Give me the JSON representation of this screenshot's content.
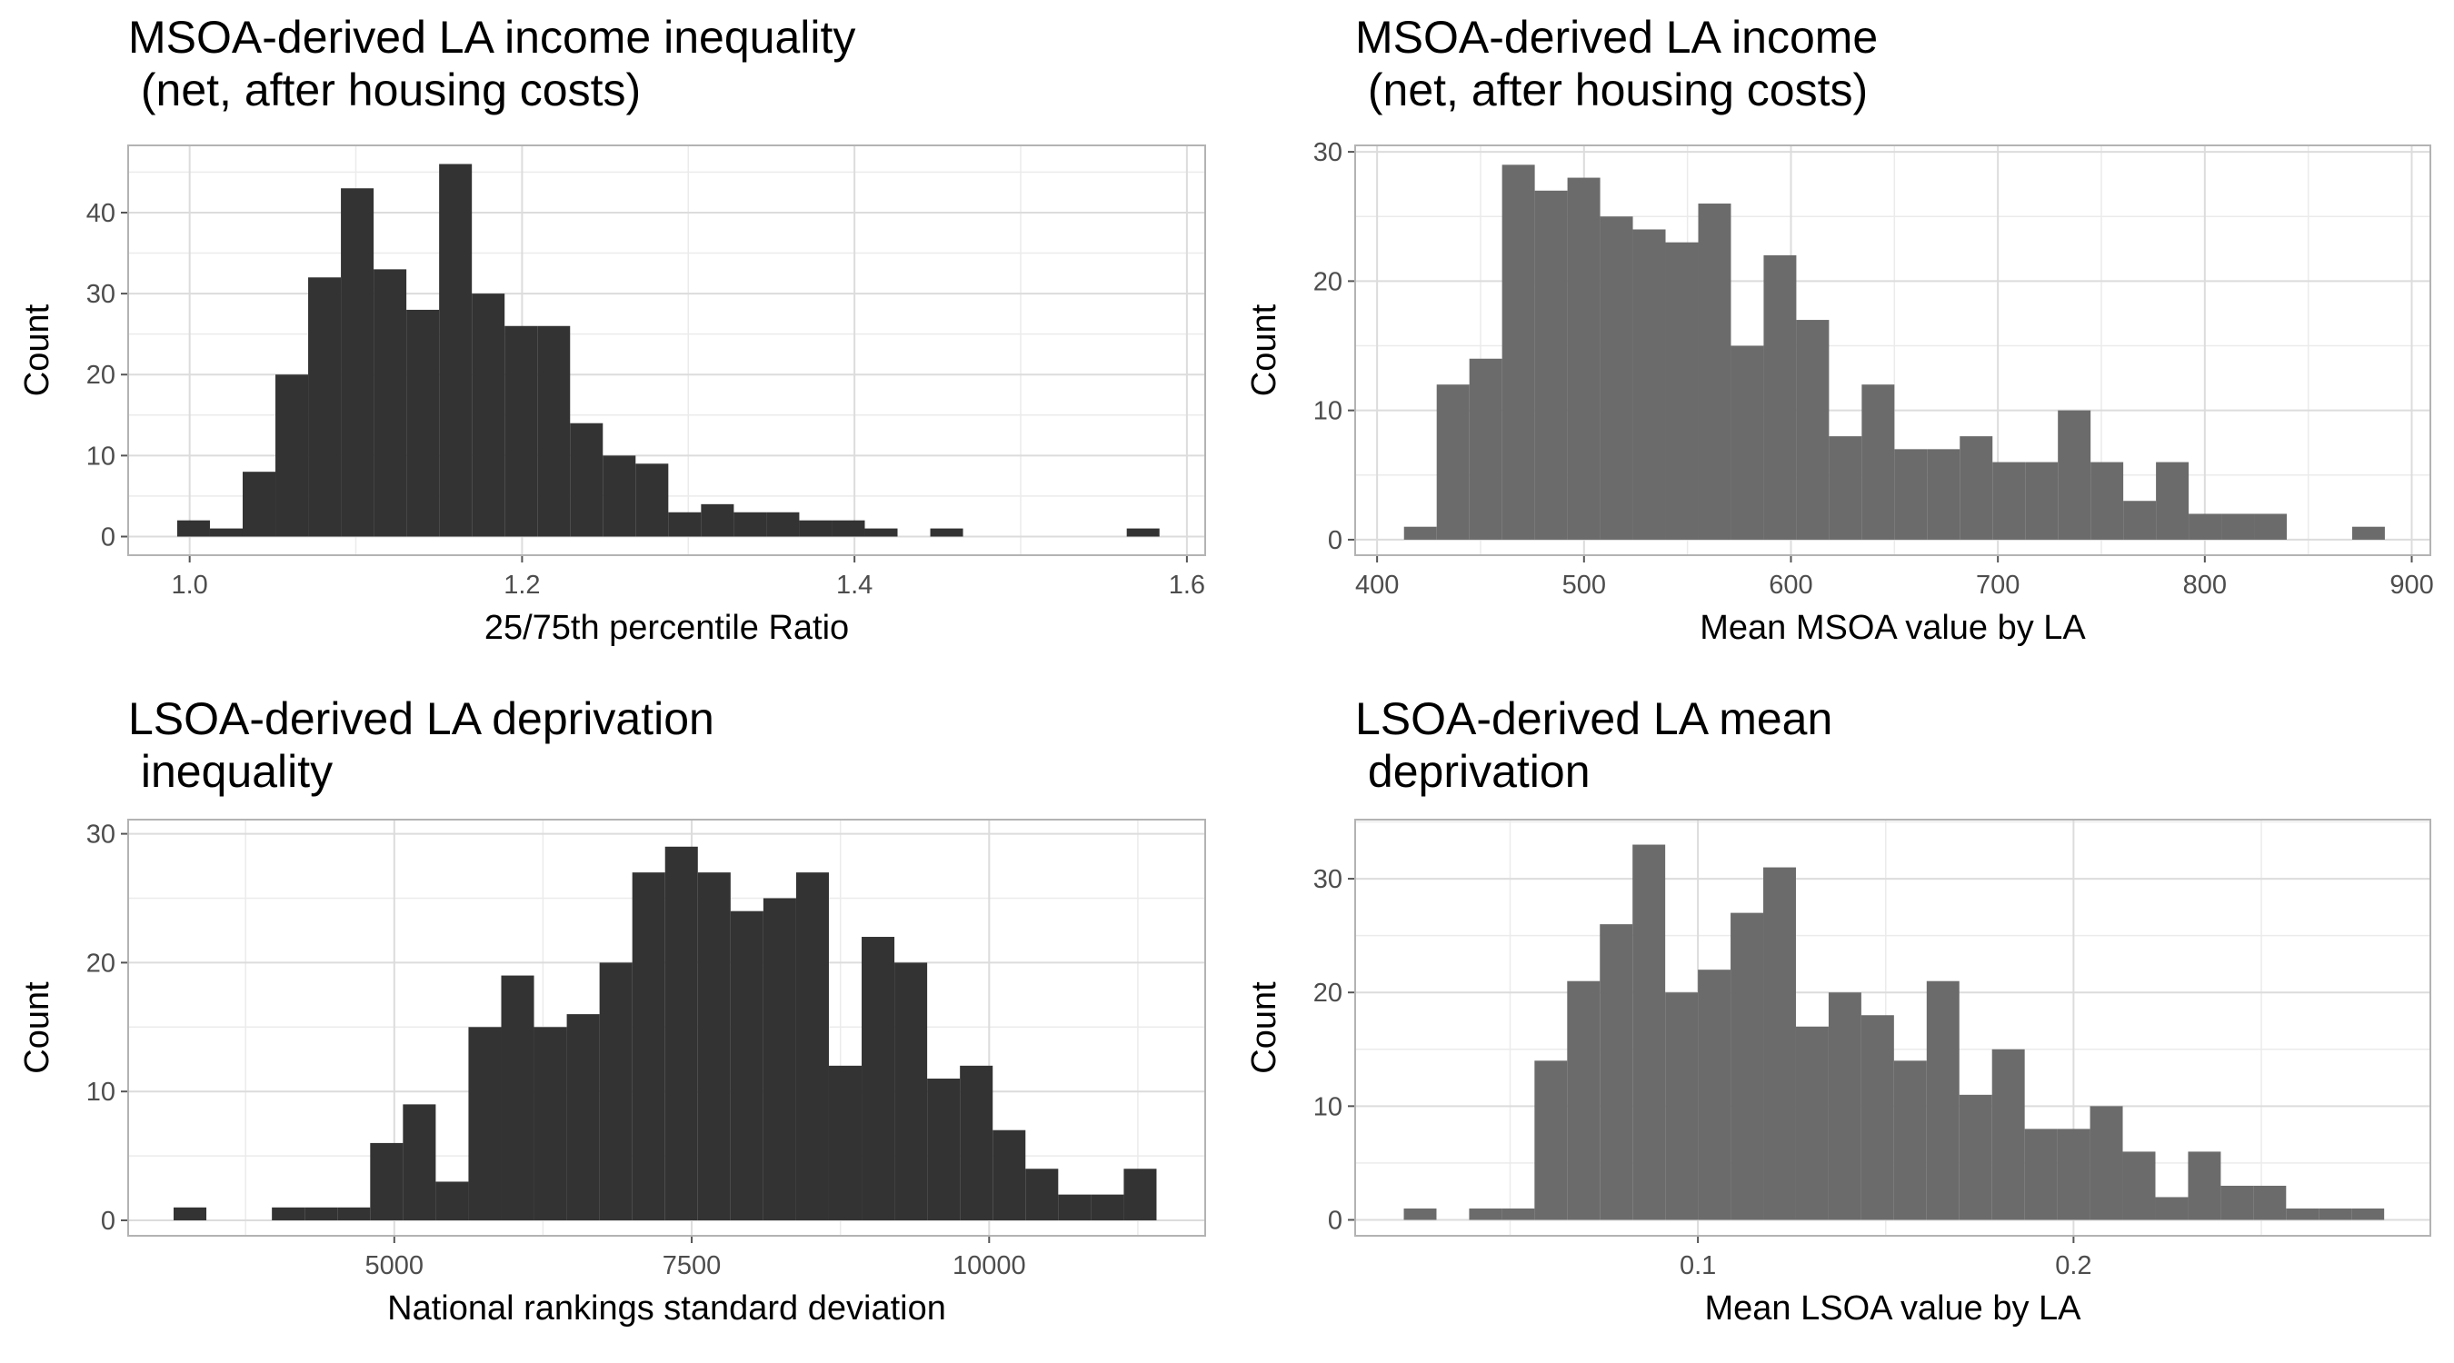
{
  "chart_data": [
    {
      "type": "histogram",
      "title": "MSOA-derived LA income inequality\n (net, after housing costs)",
      "x_label": "25/75th percentile Ratio",
      "y_label": "Count",
      "color": "#333333",
      "grid": true,
      "bins": [
        0.9925,
        1.0122,
        1.0319,
        1.0516,
        1.0713,
        1.091,
        1.1107,
        1.1304,
        1.1501,
        1.1698,
        1.1895,
        1.2092,
        1.2289,
        1.2486,
        1.2683,
        1.288,
        1.3077,
        1.3274,
        1.3471,
        1.3668,
        1.3865,
        1.4062,
        1.4259,
        1.4456,
        1.4653,
        1.485,
        1.5047,
        1.5244,
        1.5441,
        1.5638,
        1.5835
      ],
      "values": [
        2,
        1,
        8,
        20,
        32,
        43,
        33,
        28,
        46,
        30,
        26,
        26,
        14,
        10,
        9,
        3,
        4,
        3,
        3,
        2,
        2,
        1,
        0,
        1,
        0,
        0,
        0,
        0,
        0,
        1
      ],
      "xlim": [
        0.963,
        1.611
      ],
      "xticks": [
        {
          "value": 1,
          "label": "1.0"
        },
        1.2,
        1.4,
        1.6
      ],
      "ylim": [
        -2.3,
        48.3
      ],
      "yticks": [
        0,
        10,
        20,
        30,
        40
      ]
    },
    {
      "type": "histogram",
      "title": "MSOA-derived LA income\n (net, after housing costs)",
      "x_label": "Mean MSOA value by LA",
      "y_label": "Count",
      "color": "#6b6b6b",
      "grid": true,
      "bins": [
        413,
        428.8,
        444.6,
        460.4,
        476.2,
        492,
        507.8,
        523.6,
        539.4,
        555.2,
        571,
        586.8,
        602.6,
        618.4,
        634.2,
        650,
        665.8,
        681.6,
        697.4,
        713.2,
        729,
        744.8,
        760.6,
        776.4,
        792.2,
        808,
        823.8,
        839.6,
        855.4,
        871.2,
        887
      ],
      "values": [
        1,
        12,
        14,
        29,
        27,
        28,
        25,
        24,
        23,
        26,
        15,
        22,
        17,
        8,
        12,
        7,
        7,
        8,
        6,
        6,
        10,
        6,
        3,
        6,
        2,
        2,
        2,
        0,
        0,
        1
      ],
      "xlim": [
        389.4,
        909
      ],
      "xticks": [
        400,
        500,
        600,
        700,
        800,
        900
      ],
      "ylim": [
        -1.2,
        30.5
      ],
      "yticks": [
        0,
        10,
        20,
        30
      ]
    },
    {
      "type": "histogram",
      "title": "LSOA-derived LA deprivation\n inequality",
      "x_label": "National rankings standard deviation",
      "y_label": "Count",
      "color": "#333333",
      "grid": true,
      "bins": [
        3145,
        3420.4,
        3695.8,
        3971.2,
        4246.6,
        4522,
        4797.4,
        5072.8,
        5348.2,
        5623.6,
        5899,
        6174.4,
        6449.8,
        6725.2,
        7000.6,
        7276,
        7551.4,
        7826.8,
        8102.2,
        8377.6,
        8653,
        8928.4,
        9203.8,
        9479.2,
        9754.6,
        10030,
        10305.4,
        10580.8,
        10856.2,
        11131.6,
        11407
      ],
      "values": [
        1,
        0,
        0,
        1,
        1,
        1,
        6,
        9,
        3,
        15,
        19,
        15,
        16,
        20,
        27,
        29,
        27,
        24,
        25,
        27,
        12,
        22,
        20,
        11,
        12,
        7,
        4,
        2,
        2,
        4
      ],
      "xlim": [
        2763,
        11816
      ],
      "xticks": [
        5000,
        7500,
        10000
      ],
      "ylim": [
        -1.2,
        31.1
      ],
      "yticks": [
        0,
        10,
        20,
        30
      ]
    },
    {
      "type": "histogram",
      "title": "LSOA-derived LA mean\n deprivation",
      "x_label": "Mean LSOA value by LA",
      "y_label": "Count",
      "color": "#6b6b6b",
      "grid": true,
      "bins": [
        0.0217,
        0.0304,
        0.0391,
        0.0478,
        0.0565,
        0.0652,
        0.0739,
        0.0826,
        0.0913,
        0.1,
        0.1087,
        0.1174,
        0.1261,
        0.1348,
        0.1435,
        0.1522,
        0.1609,
        0.1696,
        0.1783,
        0.187,
        0.1957,
        0.2044,
        0.2131,
        0.2218,
        0.2305,
        0.2392,
        0.2479,
        0.2566,
        0.2653,
        0.274,
        0.2827
      ],
      "values": [
        1,
        0,
        1,
        1,
        14,
        21,
        26,
        33,
        20,
        22,
        27,
        31,
        17,
        20,
        18,
        14,
        21,
        11,
        15,
        8,
        8,
        10,
        6,
        2,
        6,
        3,
        3,
        1,
        1,
        1
      ],
      "xlim": [
        0.00875,
        0.295
      ],
      "xticks": [
        0.1,
        0.2
      ],
      "ylim": [
        -1.4,
        35.2
      ],
      "yticks": [
        0,
        10,
        20,
        30
      ]
    }
  ]
}
